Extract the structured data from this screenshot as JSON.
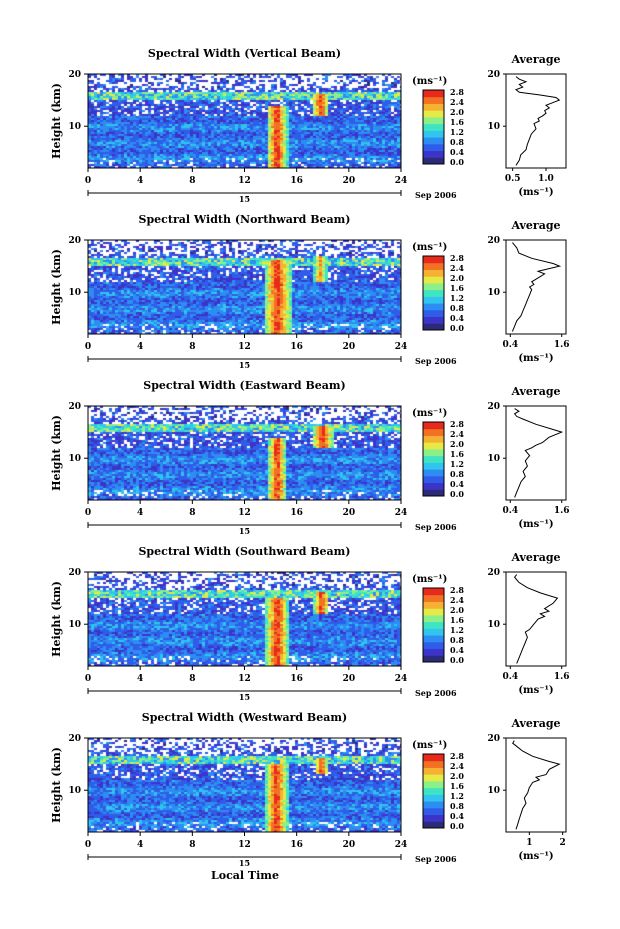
{
  "x_axis_label": "Local Time",
  "date_label": "Sep 2006",
  "day_label": "15",
  "colorbar_unit": "(ms⁻¹)",
  "avg_unit": "(ms⁻¹)",
  "colorbar_ticks": [
    "0.0",
    "0.4",
    "0.8",
    "1.2",
    "1.6",
    "2.0",
    "2.4",
    "2.8"
  ],
  "colorbar_colors": [
    "#2b2b78",
    "#3c34c8",
    "#2f5ce8",
    "#2d8df2",
    "#31c4ee",
    "#3fe4c2",
    "#8cf08a",
    "#e5ea46",
    "#f6b132",
    "#f27224",
    "#e82a1c"
  ],
  "panels": [
    {
      "title": "Spectral Width (Vertical Beam)",
      "avg_title": "Average",
      "avg_xticks": [
        "0.5",
        "1.0"
      ],
      "avg_xrange": [
        0.4,
        1.3
      ]
    },
    {
      "title": "Spectral Width (Northward Beam)",
      "avg_title": "Average",
      "avg_xticks": [
        "0.4",
        "1.6"
      ],
      "avg_xrange": [
        0.3,
        1.7
      ]
    },
    {
      "title": "Spectral Width (Eastward Beam)",
      "avg_title": "Average",
      "avg_xticks": [
        "0.4",
        "1.6"
      ],
      "avg_xrange": [
        0.3,
        1.7
      ]
    },
    {
      "title": "Spectral Width (Southward Beam)",
      "avg_title": "Average",
      "avg_xticks": [
        "0.4",
        "1.6"
      ],
      "avg_xrange": [
        0.3,
        1.7
      ]
    },
    {
      "title": "Spectral Width (Westward Beam)",
      "avg_title": "Average",
      "avg_xticks": [
        "1",
        "2"
      ],
      "avg_xrange": [
        0.3,
        2.1
      ]
    }
  ],
  "chart_data": [
    {
      "type": "heatmap",
      "title": "Spectral Width (Vertical Beam)",
      "xlabel": "Local Time",
      "ylabel": "Height (km)",
      "xlim": [
        0,
        24
      ],
      "ylim": [
        2,
        20
      ],
      "xticks": [
        0,
        4,
        8,
        12,
        16,
        20,
        24
      ],
      "yticks": [
        10,
        20
      ],
      "colorbar_range": [
        0.0,
        2.8
      ],
      "colorbar_ticks": [
        0.0,
        0.4,
        0.8,
        1.2,
        1.6,
        2.0,
        2.4,
        2.8
      ],
      "features": [
        {
          "name": "convective band",
          "time_start": 13.7,
          "time_end": 15.3,
          "height_max": 14,
          "value": 2.8
        },
        {
          "name": "upper cell",
          "time_start": 17.2,
          "time_end": 18.5,
          "height_min": 12,
          "height_max": 16,
          "value": 2.8
        },
        {
          "name": "tropopause layer",
          "height": 15.5,
          "value": 1.6
        }
      ]
    },
    {
      "type": "line",
      "title": "Average",
      "xlabel": "(ms⁻¹)",
      "ylabel": "",
      "xlim": [
        0.4,
        1.3
      ],
      "ylim": [
        2,
        20
      ],
      "x": [
        0.55,
        0.6,
        0.62,
        0.7,
        0.72,
        0.75,
        0.78,
        0.85,
        0.82,
        0.9,
        0.88,
        0.95,
        1.0,
        0.98,
        1.05,
        1.0,
        1.1,
        1.2,
        1.15,
        0.9,
        0.6,
        0.55,
        0.65,
        0.6,
        0.7,
        0.6,
        0.55
      ],
      "y": [
        2.5,
        3.5,
        4.5,
        5.5,
        6.5,
        7.5,
        8.5,
        9.5,
        10.5,
        11.0,
        11.5,
        12.0,
        12.5,
        13.0,
        13.5,
        14.0,
        14.5,
        15.0,
        15.5,
        16.0,
        16.5,
        17.0,
        17.5,
        18.0,
        18.5,
        19.0,
        19.5
      ]
    },
    {
      "type": "heatmap",
      "title": "Spectral Width (Northward Beam)",
      "xlabel": "Local Time",
      "ylabel": "Height (km)",
      "xlim": [
        0,
        24
      ],
      "ylim": [
        2,
        20
      ],
      "xticks": [
        0,
        4,
        8,
        12,
        16,
        20,
        24
      ],
      "yticks": [
        10,
        20
      ],
      "colorbar_range": [
        0.0,
        2.8
      ],
      "colorbar_ticks": [
        0.0,
        0.4,
        0.8,
        1.2,
        1.6,
        2.0,
        2.4,
        2.8
      ],
      "features": [
        {
          "name": "convective band",
          "time_start": 13.5,
          "time_end": 15.6,
          "height_max": 16,
          "value": 2.8
        },
        {
          "name": "upper cell",
          "time_start": 17.3,
          "time_end": 18.3,
          "height_min": 12,
          "height_max": 17,
          "value": 2.4
        }
      ]
    },
    {
      "type": "line",
      "title": "Average",
      "xlabel": "(ms⁻¹)",
      "ylabel": "",
      "xlim": [
        0.3,
        1.7
      ],
      "ylim": [
        2,
        20
      ],
      "x": [
        0.45,
        0.5,
        0.55,
        0.65,
        0.7,
        0.75,
        0.8,
        0.85,
        0.9,
        0.85,
        0.95,
        0.9,
        1.0,
        1.1,
        1.2,
        1.05,
        1.55,
        1.4,
        0.9,
        0.6,
        0.55,
        0.5,
        0.45
      ],
      "y": [
        2.5,
        3.5,
        4.5,
        5.5,
        6.5,
        7.5,
        8.5,
        9.5,
        10.5,
        11.0,
        11.5,
        12.0,
        12.5,
        13.0,
        13.5,
        14.0,
        15.0,
        15.5,
        16.5,
        17.5,
        18.5,
        19.0,
        19.5
      ]
    },
    {
      "type": "heatmap",
      "title": "Spectral Width (Eastward Beam)",
      "xlabel": "Local Time",
      "ylabel": "Height (km)",
      "xlim": [
        0,
        24
      ],
      "ylim": [
        2,
        20
      ],
      "xticks": [
        0,
        4,
        8,
        12,
        16,
        20,
        24
      ],
      "yticks": [
        10,
        20
      ],
      "colorbar_range": [
        0.0,
        2.8
      ],
      "colorbar_ticks": [
        0.0,
        0.4,
        0.8,
        1.2,
        1.6,
        2.0,
        2.4,
        2.8
      ],
      "features": [
        {
          "name": "convective band",
          "time_start": 13.8,
          "time_end": 15.2,
          "height_max": 14,
          "value": 2.8
        },
        {
          "name": "upper cell",
          "time_start": 17.2,
          "time_end": 18.8,
          "height_min": 12,
          "height_max": 16,
          "value": 2.8
        }
      ]
    },
    {
      "type": "line",
      "title": "Average",
      "xlabel": "(ms⁻¹)",
      "ylabel": "",
      "xlim": [
        0.3,
        1.7
      ],
      "ylim": [
        2,
        20
      ],
      "x": [
        0.5,
        0.55,
        0.6,
        0.65,
        0.75,
        0.7,
        0.8,
        0.75,
        0.85,
        0.8,
        0.75,
        0.9,
        1.0,
        1.15,
        1.3,
        1.6,
        1.4,
        1.0,
        0.7,
        0.55,
        0.5,
        0.6,
        0.5
      ],
      "y": [
        2.5,
        3.5,
        4.5,
        5.5,
        6.5,
        7.5,
        8.5,
        9.5,
        10.5,
        11.0,
        11.5,
        12.0,
        12.5,
        13.0,
        14.0,
        15.0,
        15.5,
        16.5,
        17.5,
        18.0,
        18.5,
        19.0,
        19.5
      ]
    },
    {
      "type": "heatmap",
      "title": "Spectral Width (Southward Beam)",
      "xlabel": "Local Time",
      "ylabel": "Height (km)",
      "xlim": [
        0,
        24
      ],
      "ylim": [
        2,
        20
      ],
      "xticks": [
        0,
        4,
        8,
        12,
        16,
        20,
        24
      ],
      "yticks": [
        10,
        20
      ],
      "colorbar_range": [
        0.0,
        2.8
      ],
      "colorbar_ticks": [
        0.0,
        0.4,
        0.8,
        1.2,
        1.6,
        2.0,
        2.4,
        2.8
      ],
      "features": [
        {
          "name": "convective band",
          "time_start": 13.6,
          "time_end": 15.4,
          "height_max": 15,
          "value": 2.8
        },
        {
          "name": "upper cell",
          "time_start": 17.3,
          "time_end": 18.5,
          "height_min": 12,
          "height_max": 16,
          "value": 2.8
        }
      ]
    },
    {
      "type": "line",
      "title": "Average",
      "xlabel": "(ms⁻¹)",
      "ylabel": "",
      "xlim": [
        0.3,
        1.7
      ],
      "ylim": [
        2,
        20
      ],
      "x": [
        0.55,
        0.6,
        0.65,
        0.7,
        0.75,
        0.8,
        0.75,
        0.85,
        0.9,
        1.0,
        1.05,
        1.2,
        1.1,
        1.3,
        1.2,
        1.4,
        1.5,
        1.1,
        0.8,
        0.6,
        0.5,
        0.55
      ],
      "y": [
        2.5,
        3.5,
        4.5,
        5.5,
        6.5,
        7.5,
        8.5,
        9.0,
        9.5,
        10.5,
        11.0,
        11.5,
        12.0,
        12.5,
        13.0,
        14.0,
        15.0,
        16.0,
        17.0,
        18.0,
        19.0,
        19.5
      ]
    },
    {
      "type": "heatmap",
      "title": "Spectral Width (Westward Beam)",
      "xlabel": "Local Time",
      "ylabel": "Height (km)",
      "xlim": [
        0,
        24
      ],
      "ylim": [
        2,
        20
      ],
      "xticks": [
        0,
        4,
        8,
        12,
        16,
        20,
        24
      ],
      "yticks": [
        10,
        20
      ],
      "colorbar_range": [
        0.0,
        2.8
      ],
      "colorbar_ticks": [
        0.0,
        0.4,
        0.8,
        1.2,
        1.6,
        2.0,
        2.4,
        2.8
      ],
      "features": [
        {
          "name": "convective band",
          "time_start": 13.6,
          "time_end": 15.3,
          "height_max": 15,
          "value": 2.8
        },
        {
          "name": "upper cell",
          "time_start": 17.4,
          "time_end": 18.4,
          "height_min": 13,
          "height_max": 16,
          "value": 2.8
        }
      ]
    },
    {
      "type": "line",
      "title": "Average",
      "xlabel": "(ms⁻¹)",
      "ylabel": "",
      "xlim": [
        0.3,
        2.1
      ],
      "ylim": [
        2,
        20
      ],
      "x": [
        0.6,
        0.65,
        0.7,
        0.75,
        0.8,
        0.9,
        0.85,
        0.95,
        1.0,
        1.05,
        1.1,
        1.3,
        1.2,
        1.5,
        1.6,
        1.9,
        1.6,
        1.1,
        0.8,
        0.6,
        0.5,
        0.55
      ],
      "y": [
        2.5,
        3.5,
        4.5,
        5.5,
        6.5,
        7.5,
        8.5,
        9.5,
        10.5,
        11.0,
        11.5,
        12.0,
        12.5,
        13.0,
        14.0,
        15.0,
        15.5,
        16.5,
        17.5,
        18.5,
        19.0,
        19.5
      ]
    }
  ]
}
